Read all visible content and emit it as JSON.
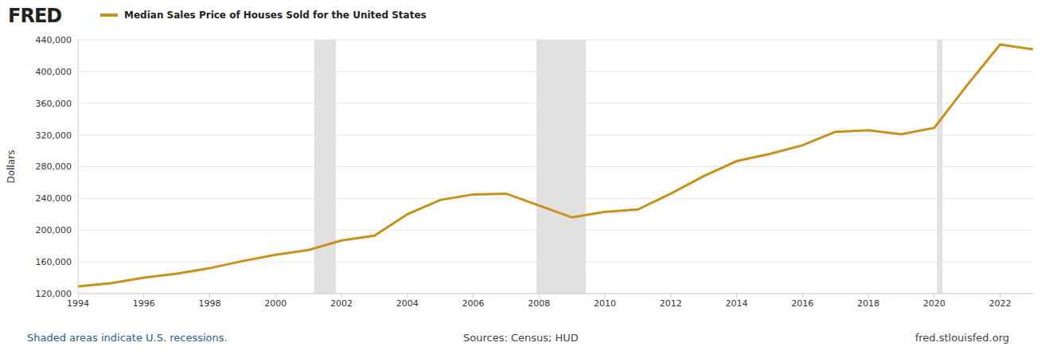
{
  "chart_data": {
    "type": "line",
    "logo": "FRED",
    "title": "Median Sales Price of Houses Sold for the United States",
    "y_label": "Dollars",
    "annotations": [
      "Shaded areas indicate U.S. recessions.",
      "Sources: Census; HUD",
      "fred.stlouisfed.org"
    ],
    "x": [
      1994,
      1995,
      1996,
      1997,
      1998,
      1999,
      2000,
      2001,
      2002,
      2003,
      2004,
      2005,
      2006,
      2007,
      2008,
      2009,
      2010,
      2011,
      2012,
      2013,
      2014,
      2015,
      2016,
      2017,
      2018,
      2019,
      2020,
      2021,
      2022,
      2023
    ],
    "series": [
      {
        "name": "Median Sales Price of Houses Sold for the United States",
        "color": "#c8911c",
        "values": [
          129000,
          133000,
          140000,
          145000,
          152000,
          161000,
          169000,
          175000,
          187000,
          193000,
          220000,
          238000,
          245000,
          246000,
          231000,
          216000,
          223000,
          226000,
          246000,
          268000,
          287000,
          296000,
          307000,
          324000,
          326000,
          321000,
          329000,
          383000,
          434000,
          428000
        ]
      }
    ],
    "recessions": [
      {
        "start": 2001.17,
        "end": 2001.83
      },
      {
        "start": 2007.92,
        "end": 2009.42
      },
      {
        "start": 2020.08,
        "end": 2020.25
      }
    ],
    "xlim": [
      1994,
      2023
    ],
    "xticks": [
      1994,
      1996,
      1998,
      2000,
      2002,
      2004,
      2006,
      2008,
      2010,
      2012,
      2014,
      2016,
      2018,
      2020,
      2022
    ],
    "ylim": [
      120000,
      440000
    ],
    "yticks": [
      {
        "value": 120000,
        "label": "120,000"
      },
      {
        "value": 160000,
        "label": "160,000"
      },
      {
        "value": 200000,
        "label": "200,000"
      },
      {
        "value": 240000,
        "label": "240,000"
      },
      {
        "value": 280000,
        "label": "280,000"
      },
      {
        "value": 320000,
        "label": "320,000"
      },
      {
        "value": 360000,
        "label": "360,000"
      },
      {
        "value": 400000,
        "label": "400,000"
      },
      {
        "value": 440000,
        "label": "440,000"
      }
    ],
    "grid": true
  }
}
